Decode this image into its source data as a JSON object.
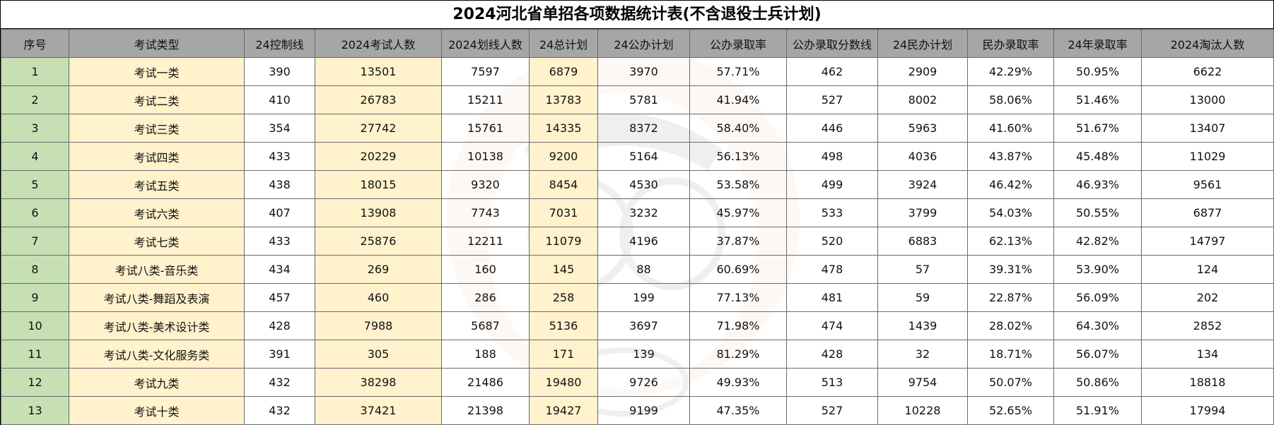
{
  "title": "2024河北省单招各项数据统计表(不含退役士兵计划)",
  "headers": [
    "序号",
    "考试类型",
    "24控制线",
    "2024考试人数",
    "2024划线人数",
    "24总计划",
    "24公办计划",
    "公办录取率",
    "公办录取分数线",
    "24民办计划",
    "民办录取率",
    "24年录取率",
    "2024淘汰人数"
  ],
  "rows": [
    [
      "1",
      "考试一类",
      "390",
      "13501",
      "7597",
      "6879",
      "3970",
      "57.71%",
      "462",
      "2909",
      "42.29%",
      "50.95%",
      "6622"
    ],
    [
      "2",
      "考试二类",
      "410",
      "26783",
      "15211",
      "13783",
      "5781",
      "41.94%",
      "527",
      "8002",
      "58.06%",
      "51.46%",
      "13000"
    ],
    [
      "3",
      "考试三类",
      "354",
      "27742",
      "15761",
      "14335",
      "8372",
      "58.40%",
      "446",
      "5963",
      "41.60%",
      "51.67%",
      "13407"
    ],
    [
      "4",
      "考试四类",
      "433",
      "20229",
      "10138",
      "9200",
      "5164",
      "56.13%",
      "498",
      "4036",
      "43.87%",
      "45.48%",
      "11029"
    ],
    [
      "5",
      "考试五类",
      "438",
      "18015",
      "9320",
      "8454",
      "4530",
      "53.58%",
      "499",
      "3924",
      "46.42%",
      "46.93%",
      "9561"
    ],
    [
      "6",
      "考试六类",
      "407",
      "13908",
      "7743",
      "7031",
      "3232",
      "45.97%",
      "533",
      "3799",
      "54.03%",
      "50.55%",
      "6877"
    ],
    [
      "7",
      "考试七类",
      "433",
      "25876",
      "12211",
      "11079",
      "4196",
      "37.87%",
      "520",
      "6883",
      "62.13%",
      "42.82%",
      "14797"
    ],
    [
      "8",
      "考试八类-音乐类",
      "434",
      "269",
      "160",
      "145",
      "88",
      "60.69%",
      "478",
      "57",
      "39.31%",
      "53.90%",
      "124"
    ],
    [
      "9",
      "考试八类-舞蹈及表演",
      "457",
      "460",
      "286",
      "258",
      "199",
      "77.13%",
      "481",
      "59",
      "22.87%",
      "56.09%",
      "202"
    ],
    [
      "10",
      "考试八类-美术设计类",
      "428",
      "7988",
      "5687",
      "5136",
      "3697",
      "71.98%",
      "474",
      "1439",
      "28.02%",
      "64.30%",
      "2852"
    ],
    [
      "11",
      "考试八类-文化服务类",
      "391",
      "305",
      "188",
      "171",
      "139",
      "81.29%",
      "428",
      "32",
      "18.71%",
      "56.07%",
      "134"
    ],
    [
      "12",
      "考试九类",
      "432",
      "38298",
      "21486",
      "19480",
      "9726",
      "49.93%",
      "513",
      "9754",
      "50.07%",
      "50.86%",
      "18818"
    ],
    [
      "13",
      "考试十类",
      "432",
      "37421",
      "21398",
      "19427",
      "9199",
      "47.35%",
      "527",
      "10228",
      "52.65%",
      "51.91%",
      "17994"
    ]
  ],
  "colors": {
    "header_bg": "#a6a6a6",
    "index_col_bg": "#c6e0b4",
    "highlight_col_bg": "#fff2cc",
    "border": "#6b6b6b"
  },
  "watermark_icon": "cartoon-mascot-watermark"
}
